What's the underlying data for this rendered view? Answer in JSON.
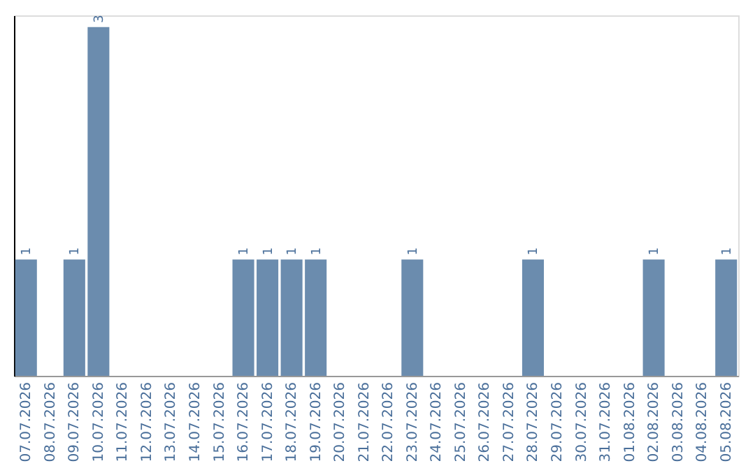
{
  "chart_data": {
    "type": "bar",
    "categories": [
      "07.07.2026",
      "08.07.2026",
      "09.07.2026",
      "10.07.2026",
      "11.07.2026",
      "12.07.2026",
      "13.07.2026",
      "14.07.2026",
      "15.07.2026",
      "16.07.2026",
      "17.07.2026",
      "18.07.2026",
      "19.07.2026",
      "20.07.2026",
      "21.07.2026",
      "22.07.2026",
      "23.07.2026",
      "24.07.2026",
      "25.07.2026",
      "26.07.2026",
      "27.07.2026",
      "28.07.2026",
      "29.07.2026",
      "30.07.2026",
      "31.07.2026",
      "01.08.2026",
      "02.08.2026",
      "03.08.2026",
      "04.08.2026",
      "05.08.2026"
    ],
    "values": [
      1,
      0,
      1,
      3,
      0,
      0,
      0,
      0,
      0,
      1,
      1,
      1,
      1,
      0,
      0,
      0,
      1,
      0,
      0,
      0,
      0,
      1,
      0,
      0,
      0,
      0,
      1,
      0,
      0,
      1
    ],
    "value_labels": [
      "1",
      null,
      "1",
      "3",
      null,
      null,
      null,
      null,
      null,
      "1",
      "1",
      "1",
      "1",
      null,
      null,
      null,
      "1",
      null,
      null,
      null,
      null,
      "1",
      null,
      null,
      null,
      null,
      "1",
      null,
      null,
      "1"
    ],
    "color": "#6b8cae",
    "ylim": [
      0,
      3.1
    ],
    "tick_labels": "x",
    "grid": false
  }
}
